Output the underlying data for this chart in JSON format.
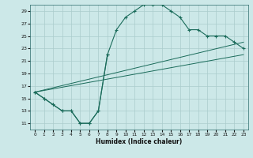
{
  "xlabel": "Humidex (Indice chaleur)",
  "bg_color": "#cce8e8",
  "grid_color": "#aacccc",
  "line_color": "#1a6b5a",
  "xlim": [
    -0.5,
    23.5
  ],
  "ylim": [
    10,
    30
  ],
  "xticks": [
    0,
    1,
    2,
    3,
    4,
    5,
    6,
    7,
    8,
    9,
    10,
    11,
    12,
    13,
    14,
    15,
    16,
    17,
    18,
    19,
    20,
    21,
    22,
    23
  ],
  "yticks": [
    11,
    13,
    15,
    17,
    19,
    21,
    23,
    25,
    27,
    29
  ],
  "curve1_x": [
    0,
    1,
    2,
    3,
    4,
    5,
    6,
    7,
    8,
    9,
    10,
    11,
    12,
    13,
    14,
    15,
    16,
    17,
    18,
    19,
    20,
    21,
    22,
    23
  ],
  "curve1_y": [
    16,
    15,
    14,
    13,
    13,
    11,
    11,
    13,
    22,
    26,
    28,
    29,
    30,
    30,
    30,
    29,
    28,
    26,
    26,
    25,
    25,
    25,
    24,
    23
  ],
  "curve2_x": [
    0,
    1,
    2,
    3,
    4,
    5,
    6,
    7,
    8
  ],
  "curve2_y": [
    16,
    15,
    14,
    13,
    13,
    11,
    11,
    13,
    22
  ],
  "line1_x": [
    0,
    23
  ],
  "line1_y": [
    16,
    24
  ],
  "line2_x": [
    0,
    23
  ],
  "line2_y": [
    16,
    22
  ],
  "line3_x": [
    0,
    23
  ],
  "line3_y": [
    16,
    23
  ]
}
